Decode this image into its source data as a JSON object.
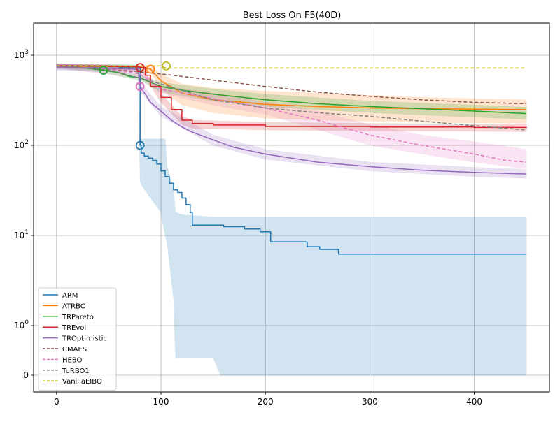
{
  "chart_data": {
    "type": "line",
    "title": "Best Loss On F5(40D)",
    "xlabel": "",
    "ylabel": "",
    "xlim": [
      -22,
      472
    ],
    "x_ticks": [
      0,
      100,
      200,
      300,
      400
    ],
    "y_scale": "symlog",
    "y_linthresh": 1,
    "y_ticks": [
      {
        "value": 0,
        "label": "0"
      },
      {
        "value": 1,
        "label": "10^0"
      },
      {
        "value": 10,
        "label": "10^1"
      },
      {
        "value": 100,
        "label": "10^2"
      },
      {
        "value": 1000,
        "label": "10^3"
      }
    ],
    "grid": true,
    "legend_position": "lower-left",
    "series": [
      {
        "name": "ARM",
        "color": "#1f77b4",
        "dash": "solid",
        "x": [
          0,
          30,
          60,
          78,
          80,
          81,
          84,
          88,
          92,
          96,
          100,
          104,
          108,
          112,
          116,
          120,
          124,
          128,
          130,
          140,
          160,
          180,
          195,
          205,
          240,
          252,
          270,
          300,
          400,
          450
        ],
        "y": [
          760,
          745,
          730,
          720,
          100,
          82,
          76,
          72,
          68,
          62,
          52,
          45,
          38,
          32,
          30,
          26,
          22,
          18,
          13,
          13,
          12.5,
          11.8,
          11,
          8.5,
          7.5,
          7,
          6.2,
          6.2,
          6.2,
          6.2
        ],
        "band_x": [
          0,
          60,
          78,
          80,
          82,
          100,
          104,
          106,
          112,
          114,
          120,
          150,
          157,
          200,
          300,
          400,
          450
        ],
        "band_low": [
          700,
          690,
          680,
          40,
          35,
          18,
          10,
          8,
          2,
          0.35,
          0.35,
          0.35,
          0,
          0,
          0,
          0,
          0
        ],
        "band_high": [
          800,
          790,
          780,
          118,
          118,
          118,
          118,
          58,
          32,
          18,
          17,
          16,
          16,
          16,
          16,
          16,
          16
        ],
        "band_opacity": 0.2,
        "marker": {
          "x": 80,
          "y": 100
        }
      },
      {
        "name": "ATRBO",
        "color": "#ff7f0e",
        "dash": "solid",
        "x": [
          0,
          50,
          80,
          90,
          100,
          120,
          150,
          200,
          250,
          300,
          350,
          400,
          450
        ],
        "y": [
          760,
          750,
          740,
          700,
          520,
          380,
          320,
          285,
          270,
          260,
          255,
          252,
          250
        ],
        "band_x": [
          0,
          90,
          100,
          120,
          150,
          200,
          250,
          300,
          350,
          400,
          450
        ],
        "band_low": [
          720,
          660,
          420,
          280,
          230,
          200,
          190,
          185,
          180,
          178,
          176
        ],
        "band_high": [
          800,
          760,
          620,
          480,
          430,
          400,
          380,
          360,
          340,
          330,
          320
        ],
        "band_opacity": 0.2,
        "marker": {
          "x": 90,
          "y": 700
        }
      },
      {
        "name": "TRPareto",
        "color": "#2ca02c",
        "dash": "solid",
        "x": [
          0,
          20,
          45,
          60,
          70,
          80,
          90,
          100,
          120,
          150,
          200,
          250,
          300,
          350,
          400,
          450
        ],
        "y": [
          760,
          740,
          680,
          640,
          580,
          560,
          500,
          450,
          410,
          370,
          320,
          290,
          270,
          255,
          240,
          225
        ],
        "band_x": [
          0,
          45,
          80,
          100,
          150,
          200,
          300,
          400,
          450
        ],
        "band_low": [
          720,
          640,
          520,
          390,
          310,
          270,
          230,
          205,
          195
        ],
        "band_high": [
          800,
          720,
          600,
          500,
          420,
          370,
          310,
          280,
          265
        ],
        "band_opacity": 0.2,
        "marker": {
          "x": 45,
          "y": 680
        }
      },
      {
        "name": "TREvol",
        "color": "#d62728",
        "dash": "solid",
        "x": [
          0,
          50,
          78,
          80,
          85,
          90,
          100,
          110,
          120,
          130,
          150,
          200,
          300,
          400,
          450
        ],
        "y": [
          760,
          750,
          740,
          730,
          600,
          450,
          340,
          250,
          190,
          175,
          168,
          162,
          160,
          158,
          156
        ],
        "band_x": [
          0,
          80,
          100,
          120,
          130,
          200,
          300,
          450
        ],
        "band_low": [
          720,
          700,
          300,
          170,
          155,
          148,
          145,
          142
        ],
        "band_high": [
          800,
          760,
          380,
          210,
          190,
          180,
          175,
          172
        ],
        "band_opacity": 0.2,
        "marker": {
          "x": 80,
          "y": 730
        }
      },
      {
        "name": "TROptimistic",
        "color": "#9467bd",
        "dash": "solid",
        "x": [
          0,
          40,
          78,
          80,
          85,
          90,
          100,
          110,
          120,
          130,
          150,
          170,
          200,
          250,
          300,
          350,
          400,
          450
        ],
        "y": [
          740,
          720,
          700,
          450,
          370,
          300,
          240,
          190,
          160,
          140,
          115,
          95,
          80,
          65,
          58,
          53,
          50,
          48
        ],
        "band_x": [
          0,
          78,
          80,
          100,
          150,
          200,
          300,
          400,
          450
        ],
        "band_low": [
          680,
          650,
          400,
          210,
          100,
          70,
          52,
          45,
          43
        ],
        "band_high": [
          800,
          760,
          500,
          270,
          130,
          90,
          65,
          57,
          54
        ],
        "band_opacity": 0.2,
        "marker": {
          "x": 80,
          "y": 450
        }
      },
      {
        "name": "CMAES",
        "color": "#8c564b",
        "dash": "dashed",
        "x": [
          0,
          50,
          100,
          150,
          200,
          250,
          300,
          350,
          400,
          450
        ],
        "y": [
          760,
          700,
          620,
          530,
          450,
          390,
          350,
          320,
          300,
          290
        ],
        "band_x": [],
        "band_low": [],
        "band_high": [],
        "band_opacity": 0
      },
      {
        "name": "HEBO",
        "color": "#e377c2",
        "dash": "dashed",
        "x": [
          0,
          50,
          80,
          100,
          150,
          200,
          250,
          300,
          350,
          400,
          430,
          450
        ],
        "y": [
          760,
          700,
          620,
          420,
          330,
          260,
          190,
          130,
          100,
          80,
          68,
          65
        ],
        "band_x": [
          0,
          80,
          100,
          150,
          200,
          250,
          300,
          350,
          400,
          450
        ],
        "band_low": [
          720,
          560,
          380,
          280,
          220,
          150,
          100,
          80,
          65,
          55
        ],
        "band_high": [
          800,
          680,
          460,
          380,
          300,
          240,
          170,
          130,
          110,
          90
        ],
        "band_opacity": 0.2,
        "marker": {
          "x": 80,
          "y": 450
        }
      },
      {
        "name": "TuRBO1",
        "color": "#7f7f7f",
        "dash": "dashed",
        "x": [
          0,
          50,
          100,
          150,
          200,
          250,
          300,
          350,
          400,
          450
        ],
        "y": [
          760,
          690,
          480,
          320,
          260,
          230,
          210,
          185,
          165,
          148
        ],
        "band_x": [],
        "band_low": [],
        "band_high": [],
        "band_opacity": 0
      },
      {
        "name": "VanillaEIBO",
        "color": "#bcbd22",
        "dash": "dashed",
        "x": [
          0,
          100,
          105,
          200,
          300,
          400,
          450
        ],
        "y": [
          760,
          760,
          720,
          720,
          720,
          720,
          720
        ],
        "band_x": [],
        "band_low": [],
        "band_high": [],
        "band_opacity": 0,
        "marker": {
          "x": 105,
          "y": 760
        }
      }
    ]
  }
}
